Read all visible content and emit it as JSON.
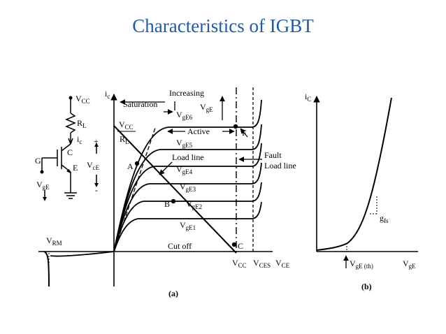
{
  "slide": {
    "title": "Characteristics of IGBT"
  },
  "circuit": {
    "vcc": "V",
    "vcc_sub": "CC",
    "rl": "R",
    "rl_sub": "L",
    "ic": "i",
    "ic_sub": "c",
    "c": "C",
    "e": "E",
    "g": "G",
    "vce": "V",
    "vce_sub": "cE",
    "plus": "+",
    "minus": "-",
    "vge": "V",
    "vge_sub": "gE"
  },
  "panel_a": {
    "y_axis": "i",
    "y_axis_sub": "c",
    "x_axis": "V",
    "x_axis_sub": "CE",
    "vcc": "V",
    "vcc_sub": "CC",
    "vces": "V",
    "vces_sub": "CES",
    "frac_top": "V",
    "frac_top_sub": "CC",
    "frac_bot": "R",
    "frac_bot_sub": "L",
    "saturation": "Saturation",
    "increasing": "Increasing",
    "increasing_v": "V",
    "increasing_v_sub": "gE",
    "active": "Active",
    "load_line": "Load line",
    "fault_1": "Fault",
    "fault_2": "Load line",
    "cutoff": "Cut off",
    "vrm": "V",
    "vrm_sub": "RM",
    "point_a": "A",
    "point_b": "B",
    "point_c": "C",
    "point_f": "F",
    "curves": [
      {
        "v": "V",
        "sub": "gE6"
      },
      {
        "v": "V",
        "sub": "gE5"
      },
      {
        "v": "V",
        "sub": "gE4"
      },
      {
        "v": "V",
        "sub": "gE3"
      },
      {
        "v": "V",
        "sub": "gE2"
      },
      {
        "v": "V",
        "sub": "gE1"
      }
    ],
    "caption": "(a)"
  },
  "panel_b": {
    "y_axis": "i",
    "y_axis_sub": "C",
    "x_axis": "V",
    "x_axis_sub": "gE",
    "threshold": "V",
    "threshold_sub": "gE (th)",
    "gfs": "g",
    "gfs_sub": "fs",
    "caption": "(b)"
  }
}
